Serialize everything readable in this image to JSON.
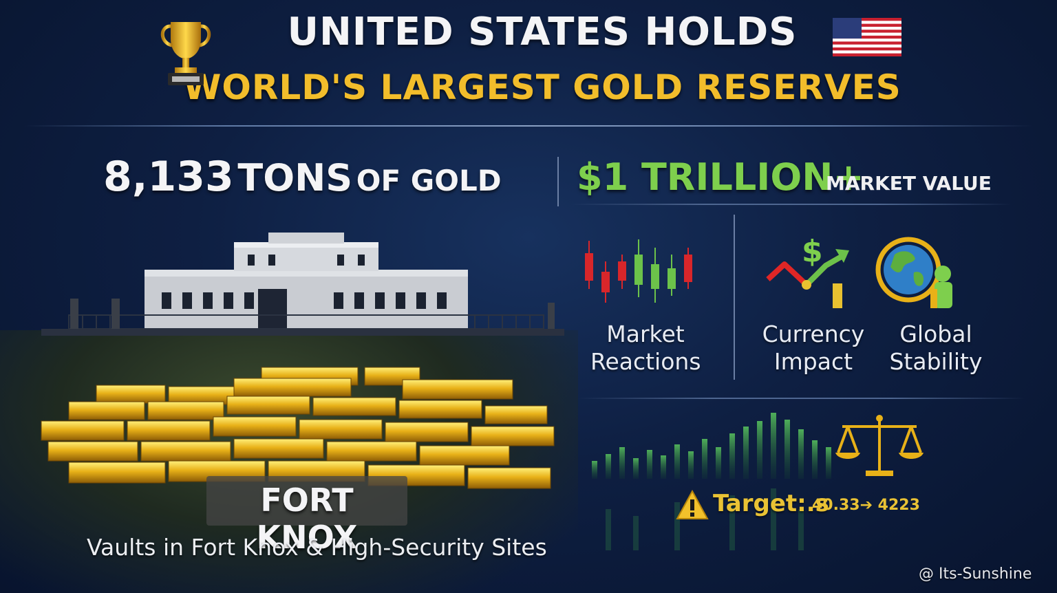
{
  "header": {
    "title_line1": "UNITED STATES HOLDS",
    "title_line2": "WORLD'S LARGEST GOLD RESERVES"
  },
  "stats": {
    "tons_number": "8,133",
    "tons_word": "TONS",
    "tons_suffix": "OF GOLD",
    "value_amount": "$1 TRILLION+",
    "value_label": "MARKET VALUE"
  },
  "location": {
    "title": "FORT KNOX",
    "subtitle": "Vaults in Fort Knox & High-Security Sites"
  },
  "impacts": [
    {
      "line1": "Market",
      "line2": "Reactions",
      "icon": "candlestick-chart-icon"
    },
    {
      "line1": "Currency",
      "line2": "Impact",
      "icon": "currency-trend-icon"
    },
    {
      "line1": "Global",
      "line2": "Stability",
      "icon": "globe-icon"
    }
  ],
  "target": {
    "label": "Target:.s",
    "values": "40.33➔ 4223"
  },
  "watermark": "@ Its-Sunshine",
  "colors": {
    "background": "#0e1f42",
    "gold": "#f2bd2b",
    "green": "#7ecf4d",
    "candle_red": "#d8262a",
    "candle_green": "#6cc24a"
  }
}
